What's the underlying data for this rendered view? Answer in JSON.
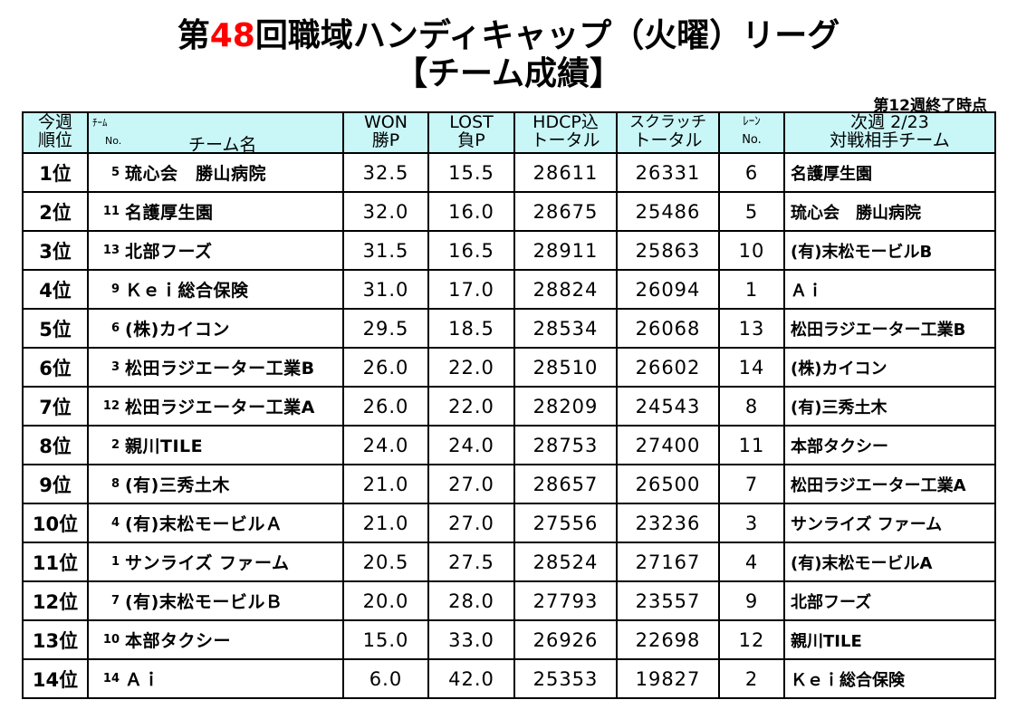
{
  "title": {
    "line1_prefix": "第",
    "line1_number": "48",
    "line1_suffix": "回職域ハンディキャップ（火曜）リーグ",
    "line2": "【チーム成績】"
  },
  "status": "第12週終了時点",
  "colors": {
    "header_bg": "#c9f6f7",
    "accent_number": "#ff0000"
  },
  "headers": {
    "rank_l1": "今週",
    "rank_l2": "順位",
    "team_l1": "ﾁｰﾑ",
    "team_l2": "No.",
    "team_l3": "チーム名",
    "won_l1": "WON",
    "won_l2": "勝P",
    "lost_l1": "LOST",
    "lost_l2": "負P",
    "hdcp_l1": "HDCP込",
    "hdcp_l2": "トータル",
    "scratch_l1": "スクラッチ",
    "scratch_l2": "トータル",
    "lane_l1": "ﾚｰﾝ",
    "lane_l2": "No.",
    "opp_l1": "次週 2/23",
    "opp_l2": "対戦相手チーム"
  },
  "rows": [
    {
      "rank": "1位",
      "no": "5",
      "team": "琉心会　勝山病院",
      "won": "32.5",
      "lost": "15.5",
      "hdcp": "28611",
      "scratch": "26331",
      "lane": "6",
      "opponent": "名護厚生園"
    },
    {
      "rank": "2位",
      "no": "11",
      "team": "名護厚生園",
      "won": "32.0",
      "lost": "16.0",
      "hdcp": "28675",
      "scratch": "25486",
      "lane": "5",
      "opponent": "琉心会　勝山病院"
    },
    {
      "rank": "3位",
      "no": "13",
      "team": "北部フーズ",
      "won": "31.5",
      "lost": "16.5",
      "hdcp": "28911",
      "scratch": "25863",
      "lane": "10",
      "opponent": "(有)末松モービルB"
    },
    {
      "rank": "4位",
      "no": "9",
      "team": "Ｋｅｉ総合保険",
      "won": "31.0",
      "lost": "17.0",
      "hdcp": "28824",
      "scratch": "26094",
      "lane": "1",
      "opponent": "Ａｉ"
    },
    {
      "rank": "5位",
      "no": "6",
      "team": "(株)カイコン",
      "won": "29.5",
      "lost": "18.5",
      "hdcp": "28534",
      "scratch": "26068",
      "lane": "13",
      "opponent": "松田ラジエーター工業B"
    },
    {
      "rank": "6位",
      "no": "3",
      "team": "松田ラジエーター工業B",
      "won": "26.0",
      "lost": "22.0",
      "hdcp": "28510",
      "scratch": "26602",
      "lane": "14",
      "opponent": "(株)カイコン"
    },
    {
      "rank": "7位",
      "no": "12",
      "team": "松田ラジエーター工業A",
      "won": "26.0",
      "lost": "22.0",
      "hdcp": "28209",
      "scratch": "24543",
      "lane": "8",
      "opponent": "(有)三秀土木"
    },
    {
      "rank": "8位",
      "no": "2",
      "team": "親川TILE",
      "won": "24.0",
      "lost": "24.0",
      "hdcp": "28753",
      "scratch": "27400",
      "lane": "11",
      "opponent": "本部タクシー"
    },
    {
      "rank": "9位",
      "no": "8",
      "team": "(有)三秀土木",
      "won": "21.0",
      "lost": "27.0",
      "hdcp": "28657",
      "scratch": "26500",
      "lane": "7",
      "opponent": "松田ラジエーター工業A"
    },
    {
      "rank": "10位",
      "no": "4",
      "team": "(有)末松モービルＡ",
      "won": "21.0",
      "lost": "27.0",
      "hdcp": "27556",
      "scratch": "23236",
      "lane": "3",
      "opponent": "サンライズ ファーム"
    },
    {
      "rank": "11位",
      "no": "1",
      "team": "サンライズ ファーム",
      "won": "20.5",
      "lost": "27.5",
      "hdcp": "28524",
      "scratch": "27167",
      "lane": "4",
      "opponent": "(有)末松モービルA"
    },
    {
      "rank": "12位",
      "no": "7",
      "team": "(有)末松モービルＢ",
      "won": "20.0",
      "lost": "28.0",
      "hdcp": "27793",
      "scratch": "23557",
      "lane": "9",
      "opponent": "北部フーズ"
    },
    {
      "rank": "13位",
      "no": "10",
      "team": "本部タクシー",
      "won": "15.0",
      "lost": "33.0",
      "hdcp": "26926",
      "scratch": "22698",
      "lane": "12",
      "opponent": "親川TILE"
    },
    {
      "rank": "14位",
      "no": "14",
      "team": "Ａｉ",
      "won": "6.0",
      "lost": "42.0",
      "hdcp": "25353",
      "scratch": "19827",
      "lane": "2",
      "opponent": "Ｋｅｉ総合保険"
    }
  ]
}
